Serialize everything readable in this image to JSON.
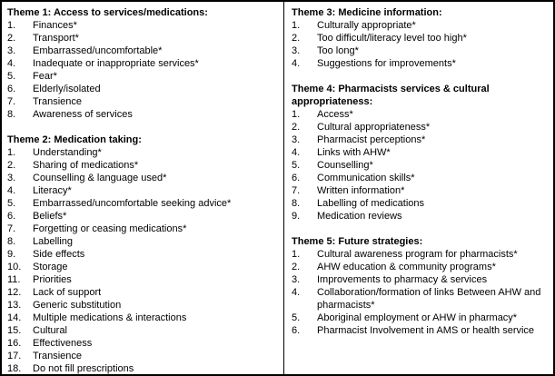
{
  "document": {
    "colors": {
      "border": "#000000",
      "background": "#ffffff",
      "text": "#000000"
    },
    "columns": {
      "left": {
        "sections": [
          {
            "title": "Theme 1: Access to services/medications:",
            "items": [
              "Finances*",
              "Transport*",
              "Embarrassed/uncomfortable*",
              "Inadequate or inappropriate services*",
              "Fear*",
              "Elderly/isolated",
              "Transience",
              "Awareness of services"
            ]
          },
          {
            "title": "Theme 2: Medication taking:",
            "items": [
              "Understanding*",
              "Sharing of medications*",
              "Counselling & language used*",
              "Literacy*",
              "Embarrassed/uncomfortable seeking advice*",
              "Beliefs*",
              "Forgetting or ceasing medications*",
              "Labelling",
              "Side effects",
              "Storage",
              "Priorities",
              "Lack of support",
              "Generic substitution",
              "Multiple medications & interactions",
              "Cultural",
              "Effectiveness",
              "Transience",
              "Do not fill prescriptions"
            ]
          }
        ]
      },
      "right": {
        "sections": [
          {
            "title": "Theme 3: Medicine information:",
            "items": [
              "Culturally appropriate*",
              "Too difficult/literacy level too high*",
              "Too long*",
              "Suggestions for improvements*"
            ]
          },
          {
            "title": "Theme 4: Pharmacists services & cultural appropriateness:",
            "items": [
              "Access*",
              "Cultural appropriateness*",
              "Pharmacist perceptions*",
              "Links with AHW*",
              "Counselling*",
              "Communication skills*",
              "Written information*",
              "Labelling of medications",
              "Medication reviews"
            ]
          },
          {
            "title": "Theme 5: Future strategies:",
            "items": [
              "Cultural awareness program for pharmacists*",
              "AHW education & community programs*",
              "Improvements to pharmacy & services",
              "Collaboration/formation of links Between AHW and pharmacists*",
              "Aboriginal employment or AHW in pharmacy*",
              "Pharmacist Involvement in AMS or health service"
            ]
          }
        ]
      }
    }
  }
}
